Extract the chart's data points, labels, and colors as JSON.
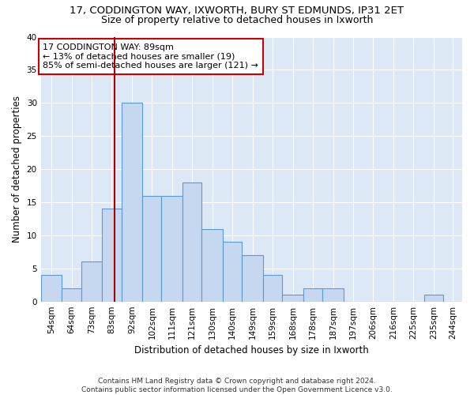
{
  "title_line1": "17, CODDINGTON WAY, IXWORTH, BURY ST EDMUNDS, IP31 2ET",
  "title_line2": "Size of property relative to detached houses in Ixworth",
  "xlabel": "Distribution of detached houses by size in Ixworth",
  "ylabel": "Number of detached properties",
  "footnote": "Contains HM Land Registry data © Crown copyright and database right 2024.\nContains public sector information licensed under the Open Government Licence v3.0.",
  "bin_labels": [
    "54sqm",
    "64sqm",
    "73sqm",
    "83sqm",
    "92sqm",
    "102sqm",
    "111sqm",
    "121sqm",
    "130sqm",
    "140sqm",
    "149sqm",
    "159sqm",
    "168sqm",
    "178sqm",
    "187sqm",
    "197sqm",
    "206sqm",
    "216sqm",
    "225sqm",
    "235sqm",
    "244sqm"
  ],
  "bar_values": [
    4,
    2,
    6,
    14,
    30,
    16,
    16,
    18,
    11,
    9,
    7,
    4,
    1,
    2,
    2,
    0,
    0,
    0,
    0,
    1,
    0
  ],
  "bar_color": "#c5d8f0",
  "bar_edge_color": "#5b9bd5",
  "vline_x_value": 89,
  "bin_edges": [
    54,
    64,
    73,
    83,
    92,
    102,
    111,
    121,
    130,
    140,
    149,
    159,
    168,
    178,
    187,
    197,
    206,
    216,
    225,
    235,
    244,
    253
  ],
  "vline_color": "#aa0000",
  "annotation_line1": "17 CODDINGTON WAY: 89sqm",
  "annotation_line2": "← 13% of detached houses are smaller (19)",
  "annotation_line3": "85% of semi-detached houses are larger (121) →",
  "annotation_box_color": "#cc0000",
  "ylim": [
    0,
    40
  ],
  "yticks": [
    0,
    5,
    10,
    15,
    20,
    25,
    30,
    35,
    40
  ],
  "fig_background_color": "#ffffff",
  "axes_background": "#dce8f5",
  "grid_color": "#ffffff",
  "title_fontsize": 9.5,
  "subtitle_fontsize": 9,
  "axis_label_fontsize": 8.5,
  "tick_fontsize": 7.5,
  "annotation_fontsize": 8
}
